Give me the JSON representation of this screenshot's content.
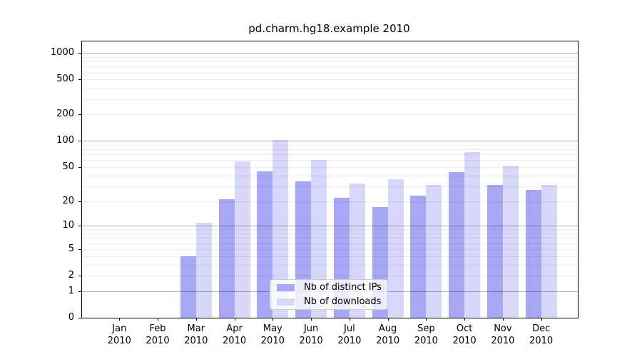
{
  "chart_data": {
    "type": "bar",
    "title": "pd.charm.hg18.example 2010",
    "categories": [
      {
        "month": "Jan",
        "year": "2010"
      },
      {
        "month": "Feb",
        "year": "2010"
      },
      {
        "month": "Mar",
        "year": "2010"
      },
      {
        "month": "Apr",
        "year": "2010"
      },
      {
        "month": "May",
        "year": "2010"
      },
      {
        "month": "Jun",
        "year": "2010"
      },
      {
        "month": "Jul",
        "year": "2010"
      },
      {
        "month": "Aug",
        "year": "2010"
      },
      {
        "month": "Sep",
        "year": "2010"
      },
      {
        "month": "Oct",
        "year": "2010"
      },
      {
        "month": "Nov",
        "year": "2010"
      },
      {
        "month": "Dec",
        "year": "2010"
      }
    ],
    "series": [
      {
        "name": "Nb of distinct IPs",
        "color": "#a7a7f5",
        "values": [
          0,
          0,
          4,
          21,
          45,
          34,
          22,
          17,
          23,
          44,
          31,
          27
        ]
      },
      {
        "name": "Nb of downloads",
        "color": "#d8d8fa",
        "values": [
          0,
          0,
          11,
          58,
          103,
          60,
          32,
          36,
          31,
          75,
          52,
          31
        ]
      }
    ],
    "y_ticks": [
      0,
      1,
      2,
      5,
      10,
      20,
      50,
      100,
      200,
      500,
      1000
    ],
    "y_scale": "log1p",
    "ylim": [
      0,
      1350
    ],
    "grid": "horizontal major (decades) + faint minors",
    "legend_position": "lower center"
  }
}
